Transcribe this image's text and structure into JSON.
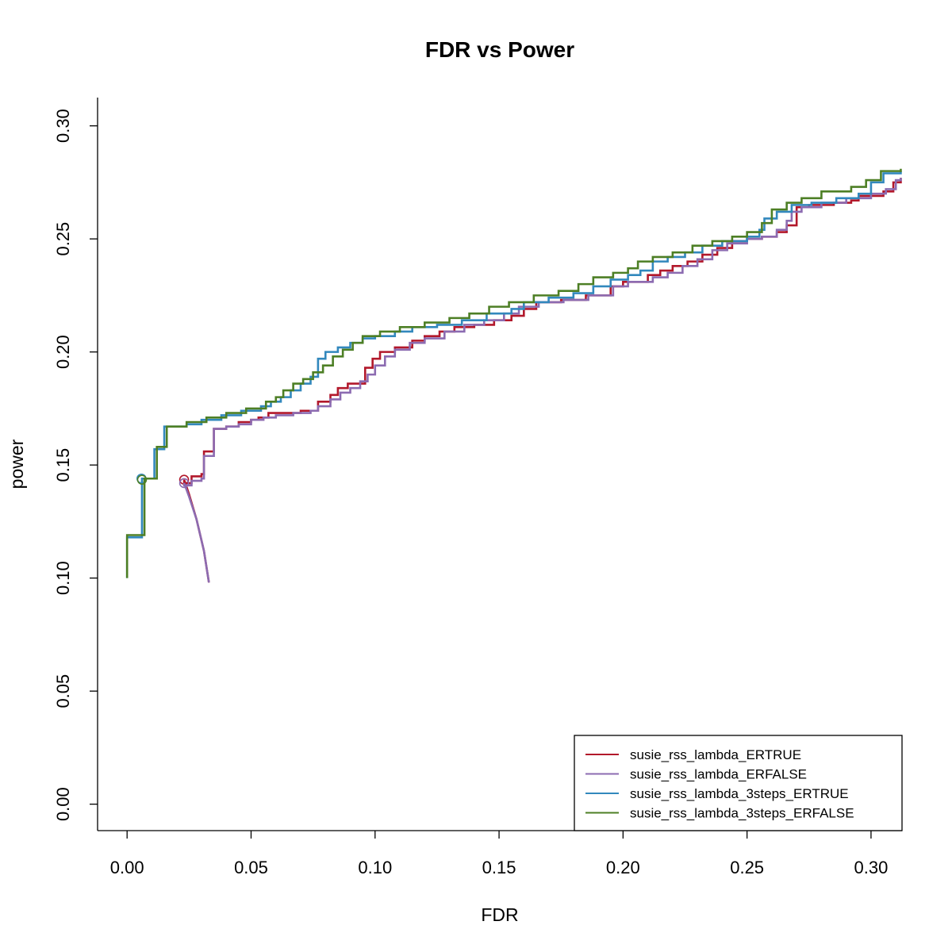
{
  "chart_data": {
    "type": "line",
    "title": "FDR vs Power",
    "xlabel": "FDR",
    "ylabel": "power",
    "xlim": [
      -0.0119,
      0.3125
    ],
    "ylim": [
      -0.0117,
      0.3125
    ],
    "xticks": [
      0.0,
      0.05,
      0.1,
      0.15,
      0.2,
      0.25,
      0.3
    ],
    "xtick_labels": [
      "0.00",
      "0.05",
      "0.10",
      "0.15",
      "0.20",
      "0.25",
      "0.30"
    ],
    "yticks": [
      0.0,
      0.05,
      0.1,
      0.15,
      0.2,
      0.25,
      0.3
    ],
    "ytick_labels": [
      "0.00",
      "0.05",
      "0.10",
      "0.15",
      "0.20",
      "0.25",
      "0.30"
    ],
    "grid": false,
    "legend_position": "bottom-right",
    "series": [
      {
        "name": "susie_rss_lambda_ERTRUE",
        "color": "#b2182b",
        "marker": {
          "x": 0.023,
          "y": 0.1435
        },
        "points": [
          [
            0.033,
            0.098
          ],
          [
            0.031,
            0.112
          ],
          [
            0.028,
            0.126
          ],
          [
            0.025,
            0.137
          ],
          [
            0.023,
            0.1435
          ],
          [
            0.023,
            0.142
          ],
          [
            0.026,
            0.142
          ],
          [
            0.026,
            0.145
          ],
          [
            0.03,
            0.146
          ],
          [
            0.031,
            0.156
          ],
          [
            0.035,
            0.157
          ],
          [
            0.035,
            0.166
          ],
          [
            0.04,
            0.167
          ],
          [
            0.045,
            0.169
          ],
          [
            0.05,
            0.17
          ],
          [
            0.053,
            0.171
          ],
          [
            0.057,
            0.173
          ],
          [
            0.062,
            0.173
          ],
          [
            0.07,
            0.174
          ],
          [
            0.074,
            0.174
          ],
          [
            0.077,
            0.178
          ],
          [
            0.082,
            0.181
          ],
          [
            0.085,
            0.184
          ],
          [
            0.089,
            0.186
          ],
          [
            0.096,
            0.186
          ],
          [
            0.096,
            0.193
          ],
          [
            0.099,
            0.197
          ],
          [
            0.102,
            0.2
          ],
          [
            0.108,
            0.202
          ],
          [
            0.115,
            0.205
          ],
          [
            0.12,
            0.207
          ],
          [
            0.126,
            0.209
          ],
          [
            0.132,
            0.211
          ],
          [
            0.14,
            0.212
          ],
          [
            0.148,
            0.214
          ],
          [
            0.155,
            0.216
          ],
          [
            0.16,
            0.219
          ],
          [
            0.165,
            0.222
          ],
          [
            0.175,
            0.223
          ],
          [
            0.185,
            0.225
          ],
          [
            0.195,
            0.229
          ],
          [
            0.2,
            0.231
          ],
          [
            0.21,
            0.234
          ],
          [
            0.215,
            0.236
          ],
          [
            0.22,
            0.238
          ],
          [
            0.226,
            0.24
          ],
          [
            0.232,
            0.243
          ],
          [
            0.238,
            0.246
          ],
          [
            0.244,
            0.249
          ],
          [
            0.25,
            0.25
          ],
          [
            0.256,
            0.251
          ],
          [
            0.262,
            0.253
          ],
          [
            0.266,
            0.256
          ],
          [
            0.27,
            0.264
          ],
          [
            0.275,
            0.265
          ],
          [
            0.285,
            0.266
          ],
          [
            0.292,
            0.267
          ],
          [
            0.295,
            0.269
          ],
          [
            0.305,
            0.271
          ],
          [
            0.309,
            0.275
          ],
          [
            0.312,
            0.277
          ]
        ]
      },
      {
        "name": "susie_rss_lambda_ERFALSE",
        "color": "#8c6bb1",
        "marker": {
          "x": 0.023,
          "y": 0.142
        },
        "points": [
          [
            0.033,
            0.098
          ],
          [
            0.031,
            0.112
          ],
          [
            0.028,
            0.126
          ],
          [
            0.025,
            0.136
          ],
          [
            0.023,
            0.142
          ],
          [
            0.023,
            0.141
          ],
          [
            0.026,
            0.143
          ],
          [
            0.03,
            0.144
          ],
          [
            0.031,
            0.154
          ],
          [
            0.035,
            0.155
          ],
          [
            0.035,
            0.166
          ],
          [
            0.04,
            0.167
          ],
          [
            0.045,
            0.168
          ],
          [
            0.05,
            0.17
          ],
          [
            0.055,
            0.171
          ],
          [
            0.06,
            0.172
          ],
          [
            0.067,
            0.173
          ],
          [
            0.074,
            0.174
          ],
          [
            0.077,
            0.176
          ],
          [
            0.082,
            0.179
          ],
          [
            0.086,
            0.182
          ],
          [
            0.09,
            0.184
          ],
          [
            0.094,
            0.187
          ],
          [
            0.097,
            0.19
          ],
          [
            0.1,
            0.194
          ],
          [
            0.104,
            0.198
          ],
          [
            0.108,
            0.201
          ],
          [
            0.114,
            0.204
          ],
          [
            0.12,
            0.206
          ],
          [
            0.128,
            0.209
          ],
          [
            0.136,
            0.212
          ],
          [
            0.144,
            0.214
          ],
          [
            0.152,
            0.217
          ],
          [
            0.158,
            0.22
          ],
          [
            0.166,
            0.222
          ],
          [
            0.176,
            0.223
          ],
          [
            0.186,
            0.225
          ],
          [
            0.196,
            0.229
          ],
          [
            0.202,
            0.231
          ],
          [
            0.212,
            0.233
          ],
          [
            0.218,
            0.235
          ],
          [
            0.224,
            0.238
          ],
          [
            0.23,
            0.241
          ],
          [
            0.236,
            0.245
          ],
          [
            0.242,
            0.248
          ],
          [
            0.25,
            0.25
          ],
          [
            0.256,
            0.251
          ],
          [
            0.262,
            0.254
          ],
          [
            0.266,
            0.258
          ],
          [
            0.268,
            0.262
          ],
          [
            0.272,
            0.264
          ],
          [
            0.28,
            0.266
          ],
          [
            0.29,
            0.268
          ],
          [
            0.3,
            0.27
          ],
          [
            0.306,
            0.272
          ],
          [
            0.31,
            0.276
          ],
          [
            0.312,
            0.277
          ]
        ]
      },
      {
        "name": "susie_rss_lambda_3steps_ERTRUE",
        "color": "#3288bd",
        "marker": {
          "x": 0.0058,
          "y": 0.144
        },
        "points": [
          [
            0.0,
            0.1
          ],
          [
            0.0,
            0.118
          ],
          [
            0.006,
            0.121
          ],
          [
            0.006,
            0.144
          ],
          [
            0.011,
            0.144
          ],
          [
            0.011,
            0.157
          ],
          [
            0.015,
            0.157
          ],
          [
            0.015,
            0.167
          ],
          [
            0.024,
            0.168
          ],
          [
            0.03,
            0.17
          ],
          [
            0.038,
            0.172
          ],
          [
            0.046,
            0.174
          ],
          [
            0.054,
            0.176
          ],
          [
            0.058,
            0.178
          ],
          [
            0.062,
            0.18
          ],
          [
            0.066,
            0.183
          ],
          [
            0.07,
            0.186
          ],
          [
            0.074,
            0.189
          ],
          [
            0.077,
            0.197
          ],
          [
            0.08,
            0.2
          ],
          [
            0.085,
            0.202
          ],
          [
            0.09,
            0.204
          ],
          [
            0.095,
            0.206
          ],
          [
            0.1,
            0.207
          ],
          [
            0.108,
            0.209
          ],
          [
            0.115,
            0.211
          ],
          [
            0.125,
            0.212
          ],
          [
            0.135,
            0.214
          ],
          [
            0.145,
            0.217
          ],
          [
            0.155,
            0.219
          ],
          [
            0.16,
            0.222
          ],
          [
            0.17,
            0.224
          ],
          [
            0.18,
            0.226
          ],
          [
            0.188,
            0.229
          ],
          [
            0.195,
            0.232
          ],
          [
            0.202,
            0.234
          ],
          [
            0.207,
            0.236
          ],
          [
            0.212,
            0.24
          ],
          [
            0.218,
            0.242
          ],
          [
            0.225,
            0.244
          ],
          [
            0.232,
            0.247
          ],
          [
            0.24,
            0.249
          ],
          [
            0.25,
            0.251
          ],
          [
            0.255,
            0.254
          ],
          [
            0.257,
            0.259
          ],
          [
            0.262,
            0.262
          ],
          [
            0.268,
            0.265
          ],
          [
            0.276,
            0.266
          ],
          [
            0.286,
            0.268
          ],
          [
            0.295,
            0.27
          ],
          [
            0.3,
            0.275
          ],
          [
            0.305,
            0.279
          ],
          [
            0.312,
            0.28
          ]
        ]
      },
      {
        "name": "susie_rss_lambda_3steps_ERFALSE",
        "color": "#4d7f25",
        "marker": {
          "x": 0.006,
          "y": 0.1435
        },
        "points": [
          [
            0.0,
            0.1
          ],
          [
            0.0,
            0.119
          ],
          [
            0.007,
            0.122
          ],
          [
            0.007,
            0.144
          ],
          [
            0.012,
            0.144
          ],
          [
            0.012,
            0.158
          ],
          [
            0.016,
            0.158
          ],
          [
            0.016,
            0.167
          ],
          [
            0.024,
            0.169
          ],
          [
            0.032,
            0.171
          ],
          [
            0.04,
            0.173
          ],
          [
            0.048,
            0.175
          ],
          [
            0.056,
            0.178
          ],
          [
            0.06,
            0.18
          ],
          [
            0.063,
            0.183
          ],
          [
            0.067,
            0.186
          ],
          [
            0.071,
            0.188
          ],
          [
            0.075,
            0.191
          ],
          [
            0.079,
            0.194
          ],
          [
            0.083,
            0.198
          ],
          [
            0.087,
            0.201
          ],
          [
            0.091,
            0.204
          ],
          [
            0.095,
            0.207
          ],
          [
            0.102,
            0.209
          ],
          [
            0.11,
            0.211
          ],
          [
            0.12,
            0.213
          ],
          [
            0.13,
            0.215
          ],
          [
            0.138,
            0.217
          ],
          [
            0.146,
            0.22
          ],
          [
            0.154,
            0.222
          ],
          [
            0.164,
            0.225
          ],
          [
            0.174,
            0.227
          ],
          [
            0.182,
            0.23
          ],
          [
            0.188,
            0.233
          ],
          [
            0.196,
            0.235
          ],
          [
            0.202,
            0.237
          ],
          [
            0.206,
            0.24
          ],
          [
            0.212,
            0.242
          ],
          [
            0.22,
            0.244
          ],
          [
            0.228,
            0.247
          ],
          [
            0.236,
            0.249
          ],
          [
            0.244,
            0.251
          ],
          [
            0.25,
            0.253
          ],
          [
            0.256,
            0.257
          ],
          [
            0.26,
            0.263
          ],
          [
            0.266,
            0.266
          ],
          [
            0.272,
            0.268
          ],
          [
            0.28,
            0.271
          ],
          [
            0.292,
            0.273
          ],
          [
            0.298,
            0.276
          ],
          [
            0.304,
            0.28
          ],
          [
            0.312,
            0.281
          ]
        ]
      }
    ]
  }
}
